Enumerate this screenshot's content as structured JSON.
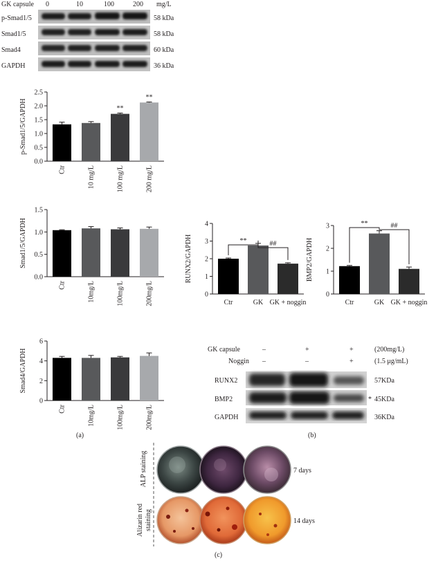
{
  "western_a": {
    "header_label": "GK capsule",
    "doses": [
      "0",
      "10",
      "100",
      "200"
    ],
    "unit": "mg/L",
    "bands": [
      {
        "name": "p-Smad1/5",
        "size": "58 kDa"
      },
      {
        "name": "Smad1/5",
        "size": "58 kDa"
      },
      {
        "name": "Smad4",
        "size": "60 kDa"
      },
      {
        "name": "GAPDH",
        "size": "36 kDa"
      }
    ]
  },
  "panel_labels": {
    "a": "(a)",
    "b": "(b)",
    "c": "(c)"
  },
  "chart_data": [
    {
      "type": "bar",
      "ylabel": "p-Smad1/5/GAPDH",
      "categories": [
        "Ctr",
        "10 mg/L",
        "100 mg/L",
        "200 mg/L"
      ],
      "values": [
        1.33,
        1.38,
        1.71,
        2.12
      ],
      "errors": [
        0.08,
        0.05,
        0.03,
        0.02
      ],
      "annotations": [
        "",
        "",
        "**",
        "**"
      ],
      "ylim": [
        0,
        2.5
      ],
      "yticks": [
        "0.0",
        "0.5",
        "1.0",
        "1.5",
        "2.0",
        "2.5"
      ],
      "colors": [
        "#000000",
        "#58595b",
        "#3a3a3c",
        "#a7a9ac"
      ]
    },
    {
      "type": "bar",
      "ylabel": "Smad1/5/GAPDH",
      "categories": [
        "Ctr",
        "10mg/L",
        "100mg/L",
        "200mg/L"
      ],
      "values": [
        1.04,
        1.08,
        1.06,
        1.07
      ],
      "errors": [
        0.01,
        0.04,
        0.03,
        0.04
      ],
      "annotations": [
        "",
        "",
        "",
        ""
      ],
      "ylim": [
        0,
        1.5
      ],
      "yticks": [
        "0.0",
        "0.5",
        "1.0",
        "1.5"
      ],
      "colors": [
        "#000000",
        "#58595b",
        "#3a3a3c",
        "#a7a9ac"
      ]
    },
    {
      "type": "bar",
      "ylabel": "Smad4/GAPDH",
      "categories": [
        "Ctr",
        "10mg/L",
        "100mg/L",
        "200mg/L"
      ],
      "values": [
        4.3,
        4.3,
        4.35,
        4.5
      ],
      "errors": [
        0.15,
        0.25,
        0.1,
        0.3
      ],
      "annotations": [
        "",
        "",
        "",
        ""
      ],
      "ylim": [
        0,
        6
      ],
      "yticks": [
        "0",
        "2",
        "4",
        "6"
      ],
      "colors": [
        "#000000",
        "#58595b",
        "#3a3a3c",
        "#a7a9ac"
      ]
    },
    {
      "type": "bar",
      "ylabel": "RUNX2/GAPDH",
      "categories": [
        "Ctr",
        "GK",
        "GK + noggin"
      ],
      "values": [
        2.0,
        2.75,
        1.72
      ],
      "errors": [
        0.04,
        0.12,
        0.05
      ],
      "brackets": [
        {
          "from": 0,
          "to": 1,
          "label": "**"
        },
        {
          "from": 1,
          "to": 2,
          "label": "##"
        }
      ],
      "ylim": [
        0,
        4
      ],
      "yticks": [
        "0",
        "1",
        "2",
        "3",
        "4"
      ],
      "colors": [
        "#000000",
        "#58595b",
        "#2b2b2b"
      ]
    },
    {
      "type": "bar",
      "ylabel": "BMP2/GAPDH",
      "categories": [
        "Ctr",
        "GK",
        "GK + noggin"
      ],
      "values": [
        1.22,
        2.65,
        1.1
      ],
      "errors": [
        0.03,
        0.12,
        0.08
      ],
      "brackets": [
        {
          "from": 0,
          "to": 1,
          "label": "**"
        },
        {
          "from": 1,
          "to": 2,
          "label": "##"
        }
      ],
      "ylim": [
        0,
        3
      ],
      "yticks": [
        "0",
        "1",
        "2",
        "3"
      ],
      "colors": [
        "#000000",
        "#58595b",
        "#2b2b2b"
      ]
    }
  ],
  "western_b": {
    "rows": [
      {
        "label": "GK capsule",
        "signs": [
          "–",
          "+",
          "+"
        ],
        "note": "(200mg/L)"
      },
      {
        "label": "Noggin",
        "signs": [
          "–",
          "–",
          "+"
        ],
        "note": "(1.5 μg/mL)"
      }
    ],
    "bands": [
      {
        "name": "RUNX2",
        "size": "57KDa"
      },
      {
        "name": "BMP2",
        "size": "45KDa",
        "marker": "*"
      },
      {
        "name": "GAPDH",
        "size": "36KDa"
      }
    ]
  },
  "staining": {
    "rows": [
      {
        "label_lines": [
          "ALP staining"
        ],
        "time": "7 days",
        "color": "#4a2848"
      },
      {
        "label_lines": [
          "Alizarin red",
          "staining"
        ],
        "time": "14 days",
        "color": "#d84a1a"
      }
    ]
  }
}
